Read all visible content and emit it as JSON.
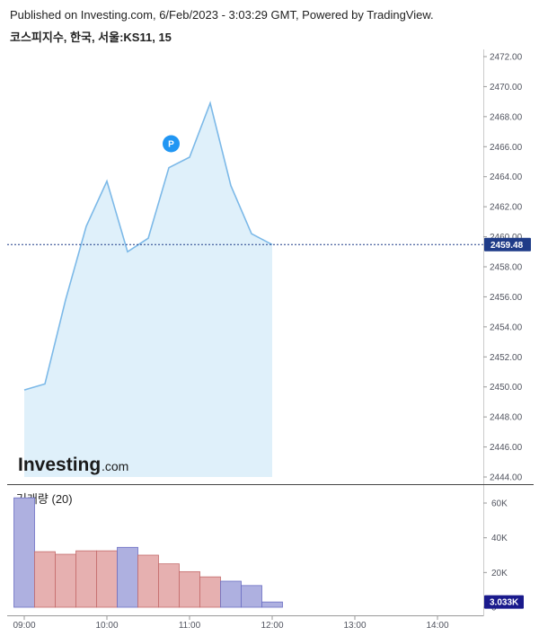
{
  "header": {
    "published": "Published on Investing.com, 6/Feb/2023 - 3:03:29 GMT, Powered by TradingView.",
    "symbol": "코스피지수, 한국, 서울:KS11, 15"
  },
  "logo": {
    "main": "Investing",
    "suffix": ".com"
  },
  "colors": {
    "price_line": "#7cb9e8",
    "price_fill": "#dff0fa",
    "last_price": "#1f3c88",
    "volume_up": "#aeb0e0",
    "volume_down": "#e6b0b0",
    "volume_last": "#1a1a8c",
    "marker": "#2196f3"
  },
  "marker": {
    "label": "P",
    "time": "10:45"
  },
  "chart_data": [
    {
      "type": "area",
      "x": [
        "09:00",
        "09:15",
        "09:30",
        "09:45",
        "10:00",
        "10:15",
        "10:30",
        "10:45",
        "11:00",
        "11:15",
        "11:30",
        "11:45",
        "12:00"
      ],
      "values": [
        2449.8,
        2450.2,
        2455.8,
        2460.7,
        2463.7,
        2459.0,
        2459.9,
        2464.6,
        2465.3,
        2468.9,
        2463.4,
        2460.2,
        2459.48
      ],
      "ylim": [
        2443.7,
        2472.6
      ],
      "y_ticks": [
        "2472.00",
        "2470.00",
        "2468.00",
        "2466.00",
        "2464.00",
        "2462.00",
        "2460.00",
        "2458.00",
        "2456.00",
        "2454.00",
        "2452.00",
        "2450.00",
        "2448.00",
        "2446.00",
        "2444.00"
      ],
      "last_price_label": "2459.48"
    },
    {
      "type": "bar",
      "title": "거래량 (20)",
      "x": [
        "09:00",
        "09:15",
        "09:30",
        "09:45",
        "10:00",
        "10:15",
        "10:30",
        "10:45",
        "11:00",
        "11:15",
        "11:30",
        "11:45",
        "12:00"
      ],
      "values": [
        63000,
        32000,
        30500,
        32500,
        32500,
        34500,
        30000,
        25000,
        20500,
        17500,
        15000,
        12500,
        3033
      ],
      "directions": [
        "up",
        "down",
        "down",
        "down",
        "down",
        "up",
        "down",
        "down",
        "down",
        "down",
        "up",
        "up",
        "up"
      ],
      "ylim": [
        0,
        66000
      ],
      "y_ticks": [
        "60K",
        "40K",
        "20K",
        "0"
      ],
      "last_value_label": "3.033K"
    }
  ],
  "x_axis": {
    "ticks": [
      "09:00",
      "10:00",
      "11:00",
      "12:00",
      "13:00",
      "14:00"
    ]
  }
}
